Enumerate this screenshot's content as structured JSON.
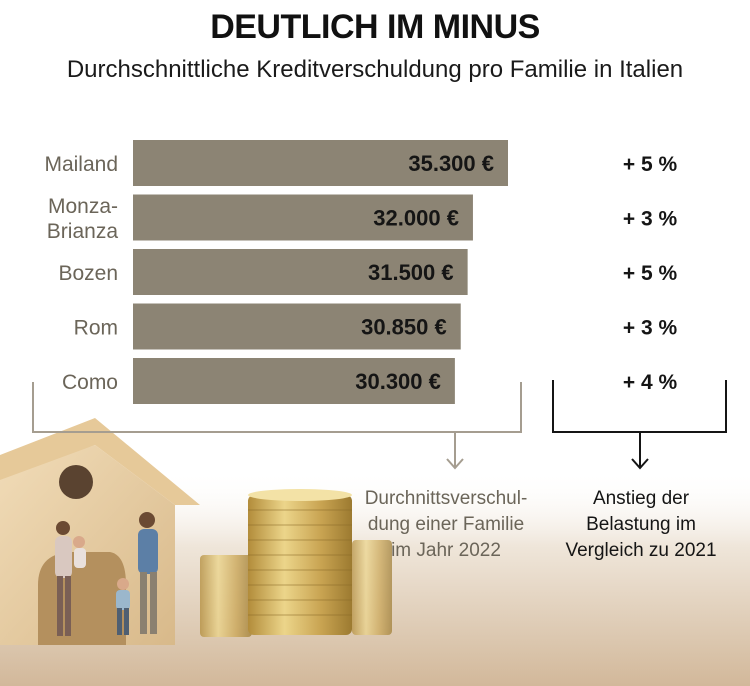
{
  "title": "DEUTLICH IM MINUS",
  "subtitle": "Durchschnittliche Kreditverschuldung pro Familie in Italien",
  "colors": {
    "bar": "#8c8474",
    "category_text": "#6b6559",
    "value_text": "#151515",
    "change_text": "#151515",
    "bracket_left": "#a59d90",
    "bracket_right": "#151515"
  },
  "chart_data": {
    "type": "bar",
    "orientation": "horizontal",
    "title": "DEUTLICH IM MINUS",
    "subtitle": "Durchschnittliche Kreditverschuldung pro Familie in Italien",
    "categories": [
      [
        "Mailand"
      ],
      [
        "Monza-",
        "Brianza"
      ],
      [
        "Bozen"
      ],
      [
        "Rom"
      ],
      [
        "Como"
      ]
    ],
    "values": [
      35300,
      32000,
      31500,
      30850,
      30300
    ],
    "value_labels": [
      "35.300 €",
      "32.000 €",
      "31.500 €",
      "30.850 €",
      "30.300 €"
    ],
    "changes": [
      "+ 5 %",
      "+ 3 %",
      "+ 5 %",
      "+ 3 %",
      "+ 4 %"
    ],
    "annotations": {
      "values_note": [
        "Durchnittsverschul-",
        "dung einer Familie",
        "im Jahr 2022"
      ],
      "changes_note": [
        "Anstieg der",
        "Belastung im",
        "Vergleich zu 2021"
      ]
    },
    "grid": false,
    "legend": "none"
  }
}
